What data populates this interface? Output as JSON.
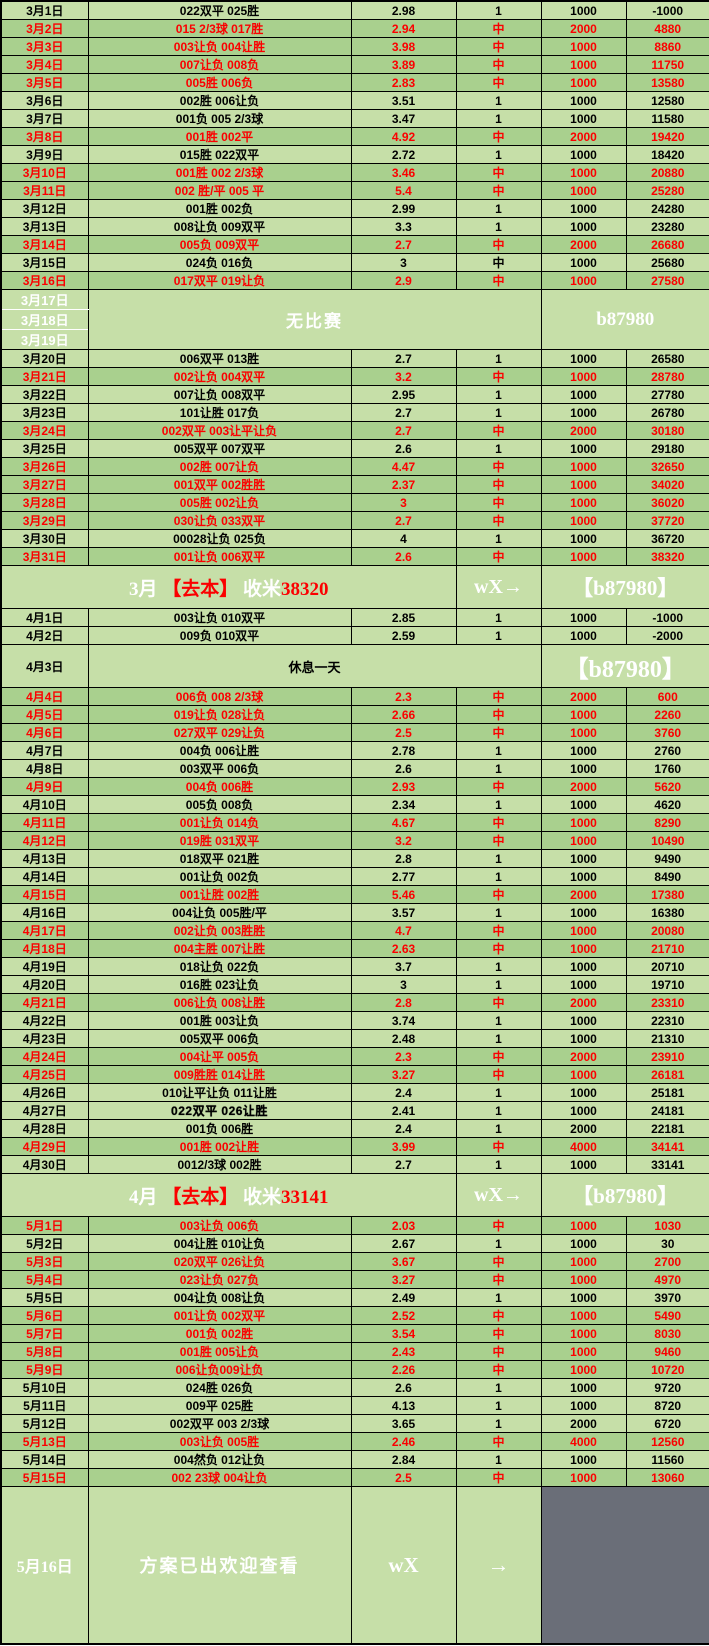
{
  "colors": {
    "row_light": "#c6dfa8",
    "row_win": "#a9d08e",
    "text_red": "#fb0000",
    "text_black": "#000000",
    "text_white": "#ffffff",
    "qr_bg": "#6a6e78",
    "qr_fg": "#d6d7d9",
    "border": "#000000"
  },
  "qr": {
    "icon": "wechat-icon"
  },
  "sections": [
    {
      "type": "rows",
      "rows": [
        {
          "date": "3月1日",
          "bet": "022双平 025胜",
          "odds": "2.98",
          "result": "1",
          "stake": "1000",
          "total": "-1000",
          "win": false
        },
        {
          "date": "3月2日",
          "bet": "015 2/3球 017胜",
          "odds": "2.94",
          "result": "中",
          "stake": "2000",
          "total": "4880",
          "win": true
        },
        {
          "date": "3月3日",
          "bet": "003让负 004让胜",
          "odds": "3.98",
          "result": "中",
          "stake": "1000",
          "total": "8860",
          "win": true
        },
        {
          "date": "3月4日",
          "bet": "007让负 008负",
          "odds": "3.89",
          "result": "中",
          "stake": "1000",
          "total": "11750",
          "win": true
        },
        {
          "date": "3月5日",
          "bet": "005胜 006负",
          "odds": "2.83",
          "result": "中",
          "stake": "1000",
          "total": "13580",
          "win": true
        },
        {
          "date": "3月6日",
          "bet": "002胜 006让负",
          "odds": "3.51",
          "result": "1",
          "stake": "1000",
          "total": "12580",
          "win": false
        },
        {
          "date": "3月7日",
          "bet": "001负 005 2/3球",
          "odds": "3.47",
          "result": "1",
          "stake": "1000",
          "total": "11580",
          "win": false
        },
        {
          "date": "3月8日",
          "bet": "001胜 002平",
          "odds": "4.92",
          "result": "中",
          "stake": "2000",
          "total": "19420",
          "win": true
        },
        {
          "date": "3月9日",
          "bet": "015胜 022双平",
          "odds": "2.72",
          "result": "1",
          "stake": "1000",
          "total": "18420",
          "win": false
        },
        {
          "date": "3月10日",
          "bet": "001胜 002 2/3球",
          "odds": "3.46",
          "result": "中",
          "stake": "1000",
          "total": "20880",
          "win": true
        },
        {
          "date": "3月11日",
          "bet": "002 胜/平 005 平",
          "odds": "5.4",
          "result": "中",
          "stake": "1000",
          "total": "25280",
          "win": true
        },
        {
          "date": "3月12日",
          "bet": "001胜 002负",
          "odds": "2.99",
          "result": "1",
          "stake": "1000",
          "total": "24280",
          "win": false
        },
        {
          "date": "3月13日",
          "bet": "008让负 009双平",
          "odds": "3.3",
          "result": "1",
          "stake": "1000",
          "total": "23280",
          "win": false
        },
        {
          "date": "3月14日",
          "bet": "005负 009双平",
          "odds": "2.7",
          "result": "中",
          "stake": "2000",
          "total": "26680",
          "win": true
        },
        {
          "date": "3月15日",
          "bet": "024负 016负",
          "odds": "3",
          "result": "中",
          "stake": "1000",
          "total": "25680",
          "win": false,
          "result_red": true
        },
        {
          "date": "3月16日",
          "bet": "017双平 019让负",
          "odds": "2.9",
          "result": "中",
          "stake": "1000",
          "total": "27580",
          "win": true
        }
      ]
    },
    {
      "type": "no_match",
      "dates": [
        "3月17日",
        "3月18日",
        "3月19日"
      ],
      "center": "无比赛",
      "right": "b87980"
    },
    {
      "type": "rows",
      "rows": [
        {
          "date": "3月20日",
          "bet": "006双平 013胜",
          "odds": "2.7",
          "result": "1",
          "stake": "1000",
          "total": "26580",
          "win": false
        },
        {
          "date": "3月21日",
          "bet": "002让负 004双平",
          "odds": "3.2",
          "result": "中",
          "stake": "1000",
          "total": "28780",
          "win": true
        },
        {
          "date": "3月22日",
          "bet": "007让负 008双平",
          "odds": "2.95",
          "result": "1",
          "stake": "1000",
          "total": "27780",
          "win": false
        },
        {
          "date": "3月23日",
          "bet": "101让胜 017负",
          "odds": "2.7",
          "result": "1",
          "stake": "1000",
          "total": "26780",
          "win": false
        },
        {
          "date": "3月24日",
          "bet": "002双平 003让平让负",
          "odds": "2.7",
          "result": "中",
          "stake": "2000",
          "total": "30180",
          "win": true
        },
        {
          "date": "3月25日",
          "bet": "005双平 007双平",
          "odds": "2.6",
          "result": "1",
          "stake": "1000",
          "total": "29180",
          "win": false
        },
        {
          "date": "3月26日",
          "bet": "002胜 007让负",
          "odds": "4.47",
          "result": "中",
          "stake": "1000",
          "total": "32650",
          "win": true
        },
        {
          "date": "3月27日",
          "bet": "001双平 002胜胜",
          "odds": "2.37",
          "result": "中",
          "stake": "1000",
          "total": "34020",
          "win": true
        },
        {
          "date": "3月28日",
          "bet": "005胜 002让负",
          "odds": "3",
          "result": "中",
          "stake": "1000",
          "total": "36020",
          "win": true
        },
        {
          "date": "3月29日",
          "bet": "030让负 033双平",
          "odds": "2.7",
          "result": "中",
          "stake": "1000",
          "total": "37720",
          "win": true
        },
        {
          "date": "3月30日",
          "bet": "00028让负 025负",
          "odds": "4",
          "result": "1",
          "stake": "1000",
          "total": "36720",
          "win": false
        },
        {
          "date": "3月31日",
          "bet": "001让负 006双平",
          "odds": "2.6",
          "result": "中",
          "stake": "1000",
          "total": "38320",
          "win": true
        }
      ]
    },
    {
      "type": "summary",
      "parts": [
        {
          "text": "3月 ",
          "color": "w"
        },
        {
          "text": "【去本】",
          "color": "r"
        },
        {
          "text": " 收米",
          "color": "w"
        },
        {
          "text": "38320",
          "color": "r"
        }
      ],
      "mid": "wX→",
      "right": "【b87980】"
    },
    {
      "type": "rows",
      "rows": [
        {
          "date": "4月1日",
          "bet": "003让负 010双平",
          "odds": "2.85",
          "result": "1",
          "stake": "1000",
          "total": "-1000",
          "win": false
        },
        {
          "date": "4月2日",
          "bet": "009负 010双平",
          "odds": "2.59",
          "result": "1",
          "stake": "1000",
          "total": "-2000",
          "win": false
        }
      ]
    },
    {
      "type": "rest",
      "date": "4月3日",
      "center": "休息一天",
      "right": "【b87980】"
    },
    {
      "type": "rows",
      "rows": [
        {
          "date": "4月4日",
          "bet": "006负 008 2/3球",
          "odds": "2.3",
          "result": "中",
          "stake": "2000",
          "total": "600",
          "win": true
        },
        {
          "date": "4月5日",
          "bet": "019让负 028让负",
          "odds": "2.66",
          "result": "中",
          "stake": "1000",
          "total": "2260",
          "win": true
        },
        {
          "date": "4月6日",
          "bet": "027双平 029让负",
          "odds": "2.5",
          "result": "中",
          "stake": "1000",
          "total": "3760",
          "win": true
        },
        {
          "date": "4月7日",
          "bet": "004负 006让胜",
          "odds": "2.78",
          "result": "1",
          "stake": "1000",
          "total": "2760",
          "win": false
        },
        {
          "date": "4月8日",
          "bet": "003双平 006负",
          "odds": "2.6",
          "result": "1",
          "stake": "1000",
          "total": "1760",
          "win": false
        },
        {
          "date": "4月9日",
          "bet": "004负 006胜",
          "odds": "2.93",
          "result": "中",
          "stake": "2000",
          "total": "5620",
          "win": true
        },
        {
          "date": "4月10日",
          "bet": "005负 008负",
          "odds": "2.34",
          "result": "1",
          "stake": "1000",
          "total": "4620",
          "win": false
        },
        {
          "date": "4月11日",
          "bet": "001让负 014负",
          "odds": "4.67",
          "result": "中",
          "stake": "1000",
          "total": "8290",
          "win": true
        },
        {
          "date": "4月12日",
          "bet": "019胜 031双平",
          "odds": "3.2",
          "result": "中",
          "stake": "1000",
          "total": "10490",
          "win": true
        },
        {
          "date": "4月13日",
          "bet": "018双平 021胜",
          "odds": "2.8",
          "result": "1",
          "stake": "1000",
          "total": "9490",
          "win": false
        },
        {
          "date": "4月14日",
          "bet": "001让负 002负",
          "odds": "2.77",
          "result": "1",
          "stake": "1000",
          "total": "8490",
          "win": false
        },
        {
          "date": "4月15日",
          "bet": "001让胜 002胜",
          "odds": "5.46",
          "result": "中",
          "stake": "2000",
          "total": "17380",
          "win": true
        },
        {
          "date": "4月16日",
          "bet": "004让负 005胜/平",
          "odds": "3.57",
          "result": "1",
          "stake": "1000",
          "total": "16380",
          "win": false
        },
        {
          "date": "4月17日",
          "bet": "002让负 003胜胜",
          "odds": "4.7",
          "result": "中",
          "stake": "1000",
          "total": "20080",
          "win": true
        },
        {
          "date": "4月18日",
          "bet": "004主胜 007让胜",
          "odds": "2.63",
          "result": "中",
          "stake": "1000",
          "total": "21710",
          "win": true
        },
        {
          "date": "4月19日",
          "bet": "018让负 022负",
          "odds": "3.7",
          "result": "1",
          "stake": "1000",
          "total": "20710",
          "win": false
        },
        {
          "date": "4月20日",
          "bet": "016胜 023让负",
          "odds": "3",
          "result": "1",
          "stake": "1000",
          "total": "19710",
          "win": false
        },
        {
          "date": "4月21日",
          "bet": "006让负 008让胜",
          "odds": "2.8",
          "result": "中",
          "stake": "2000",
          "total": "23310",
          "win": true
        },
        {
          "date": "4月22日",
          "bet": "001胜 003让负",
          "odds": "3.74",
          "result": "1",
          "stake": "1000",
          "total": "22310",
          "win": false
        },
        {
          "date": "4月23日",
          "bet": "005双平 006负",
          "odds": "2.48",
          "result": "1",
          "stake": "1000",
          "total": "21310",
          "win": false
        },
        {
          "date": "4月24日",
          "bet": "004让平 005负",
          "odds": "2.3",
          "result": "中",
          "stake": "2000",
          "total": "23910",
          "win": true
        },
        {
          "date": "4月25日",
          "bet": "009胜胜 014让胜",
          "odds": "3.27",
          "result": "中",
          "stake": "1000",
          "total": "26181",
          "win": true
        },
        {
          "date": "4月26日",
          "bet": "010让平让负 011让胜",
          "odds": "2.4",
          "result": "1",
          "stake": "1000",
          "total": "25181",
          "win": false
        },
        {
          "date": "4月27日",
          "bet": "022双平  026让胜",
          "odds": "2.41",
          "result": "1",
          "stake": "1000",
          "total": "24181",
          "win": false,
          "emph": true
        },
        {
          "date": "4月28日",
          "bet": "001负 006胜",
          "odds": "2.4",
          "result": "1",
          "stake": "2000",
          "total": "22181",
          "win": false
        },
        {
          "date": "4月29日",
          "bet": "001胜 002让胜",
          "odds": "3.99",
          "result": "中",
          "stake": "4000",
          "total": "34141",
          "win": true
        },
        {
          "date": "4月30日",
          "bet": "0012/3球 002胜",
          "odds": "2.7",
          "result": "1",
          "stake": "1000",
          "total": "33141",
          "win": false
        }
      ]
    },
    {
      "type": "summary",
      "parts": [
        {
          "text": "4月 ",
          "color": "w"
        },
        {
          "text": "【去本】",
          "color": "r"
        },
        {
          "text": " 收米",
          "color": "w"
        },
        {
          "text": "33141",
          "color": "r"
        }
      ],
      "mid": "wX→",
      "right": "【b87980】"
    },
    {
      "type": "rows",
      "rows": [
        {
          "date": "5月1日",
          "bet": "003让负 006负",
          "odds": "2.03",
          "result": "中",
          "stake": "1000",
          "total": "1030",
          "win": true
        },
        {
          "date": "5月2日",
          "bet": "004让胜 010让负",
          "odds": "2.67",
          "result": "1",
          "stake": "1000",
          "total": "30",
          "win": false
        },
        {
          "date": "5月3日",
          "bet": "020双平 026让负",
          "odds": "3.67",
          "result": "中",
          "stake": "1000",
          "total": "2700",
          "win": true
        },
        {
          "date": "5月4日",
          "bet": "023让负 027负",
          "odds": "3.27",
          "result": "中",
          "stake": "1000",
          "total": "4970",
          "win": true
        },
        {
          "date": "5月5日",
          "bet": "004让负 008让负",
          "odds": "2.49",
          "result": "1",
          "stake": "1000",
          "total": "3970",
          "win": false
        },
        {
          "date": "5月6日",
          "bet": "001让负 002双平",
          "odds": "2.52",
          "result": "中",
          "stake": "1000",
          "total": "5490",
          "win": true
        },
        {
          "date": "5月7日",
          "bet": "001负 002胜",
          "odds": "3.54",
          "result": "中",
          "stake": "1000",
          "total": "8030",
          "win": true
        },
        {
          "date": "5月8日",
          "bet": "001胜 005让负",
          "odds": "2.43",
          "result": "中",
          "stake": "1000",
          "total": "9460",
          "win": true
        },
        {
          "date": "5月9日",
          "bet": "006让负009让负",
          "odds": "2.26",
          "result": "中",
          "stake": "1000",
          "total": "10720",
          "win": true
        },
        {
          "date": "5月10日",
          "bet": "024胜 026负",
          "odds": "2.6",
          "result": "1",
          "stake": "1000",
          "total": "9720",
          "win": false
        },
        {
          "date": "5月11日",
          "bet": "009平 025胜",
          "odds": "4.13",
          "result": "1",
          "stake": "1000",
          "total": "8720",
          "win": false
        },
        {
          "date": "5月12日",
          "bet": "002双平 003 2/3球",
          "odds": "3.65",
          "result": "1",
          "stake": "2000",
          "total": "6720",
          "win": false
        },
        {
          "date": "5月13日",
          "bet": "003让负 005胜",
          "odds": "2.46",
          "result": "中",
          "stake": "4000",
          "total": "12560",
          "win": true
        },
        {
          "date": "5月14日",
          "bet": "004然负 012让负",
          "odds": "2.84",
          "result": "1",
          "stake": "1000",
          "total": "11560",
          "win": false
        },
        {
          "date": "5月15日",
          "bet": "002 23球 004让负",
          "odds": "2.5",
          "result": "中",
          "stake": "1000",
          "total": "13060",
          "win": true
        }
      ]
    },
    {
      "type": "footer",
      "date": "5月16日",
      "text": "方案已出欢迎查看",
      "wx": "wX",
      "arrow": "→"
    }
  ]
}
